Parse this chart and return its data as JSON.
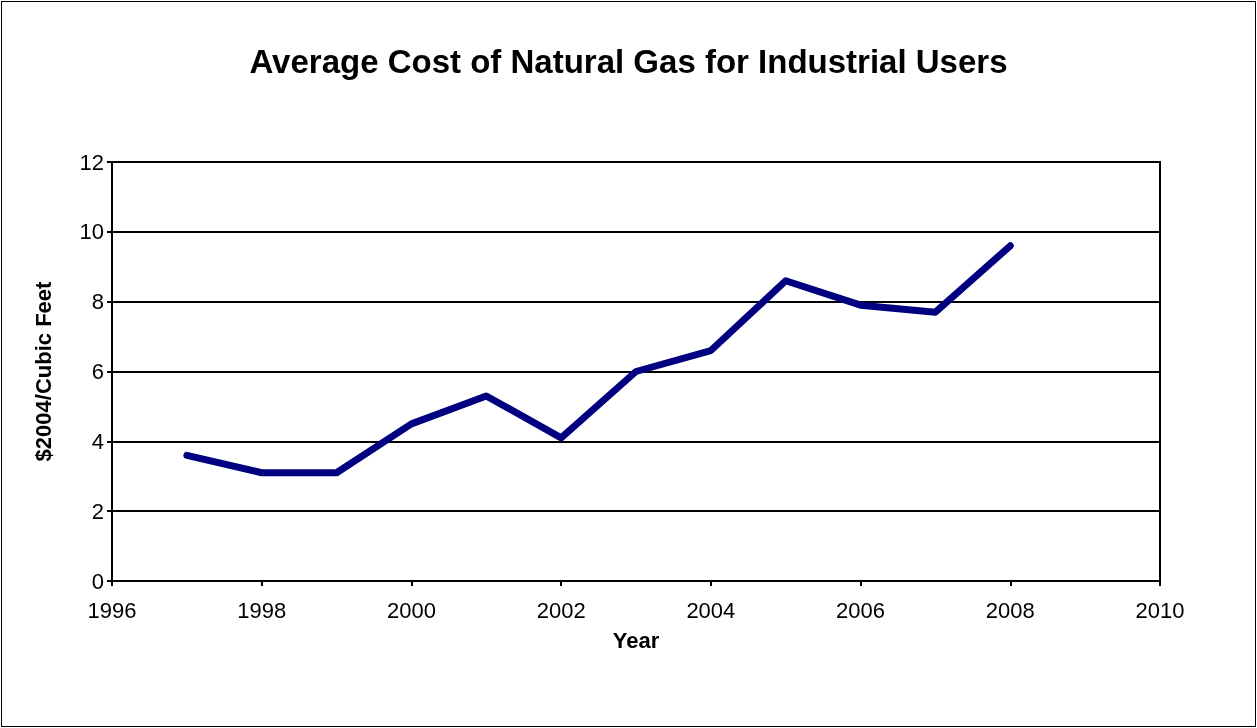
{
  "chart_data": {
    "type": "line",
    "title": "Average Cost of Natural Gas for Industrial Users",
    "xlabel": "Year",
    "ylabel": "$2004/Cubic Feet",
    "x": [
      1997,
      1998,
      1999,
      2000,
      2001,
      2002,
      2003,
      2004,
      2005,
      2006,
      2007,
      2008
    ],
    "series": [
      {
        "color": "#000080",
        "values": [
          3.6,
          3.1,
          3.1,
          4.5,
          5.3,
          4.1,
          6.0,
          6.6,
          8.6,
          7.9,
          7.7,
          9.6
        ]
      }
    ],
    "xlim": [
      1996,
      2010
    ],
    "xticks": [
      1996,
      1998,
      2000,
      2002,
      2004,
      2006,
      2008,
      2010
    ],
    "ylim": [
      0,
      12
    ],
    "yticks": [
      0,
      2,
      4,
      6,
      8,
      10,
      12
    ],
    "grid": "y",
    "marker": "none",
    "line_style": "solid"
  }
}
